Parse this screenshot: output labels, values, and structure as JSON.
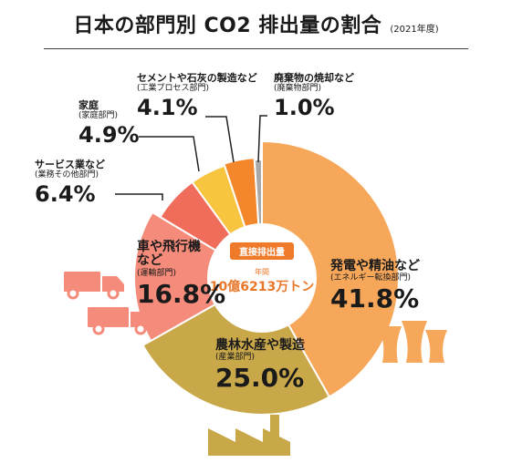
{
  "title": {
    "main": "日本の部門別 CO2 排出量の割合",
    "year": "(2021年度)"
  },
  "center": {
    "badge": "直接排出量",
    "label": "年間",
    "value": "10億6213万トン"
  },
  "colors": {
    "energy": "#f7a75a",
    "industry": "#c9a84a",
    "transport": "#f58b7a",
    "business": "#f06d5c",
    "household": "#f8c540",
    "industrial_process": "#f4872b",
    "waste": "#a9a9a9",
    "accent": "#ee7a2a"
  },
  "chart_data": {
    "type": "pie",
    "title": "日本の部門別 CO2 排出量の割合",
    "subtitle": "(2021年度)",
    "slices": [
      {
        "name": "発電や精油など",
        "sub": "(エネルギー転換部門)",
        "value": 41.8,
        "label": "41.8%"
      },
      {
        "name": "農林水産や製造",
        "sub": "(産業部門)",
        "value": 25.0,
        "label": "25.0%"
      },
      {
        "name": "車や飛行機など",
        "sub": "(運輸部門)",
        "value": 16.8,
        "label": "16.8%"
      },
      {
        "name": "サービス業など",
        "sub": "(業務その他部門)",
        "value": 6.4,
        "label": "6.4%"
      },
      {
        "name": "家庭",
        "sub": "(家庭部門)",
        "value": 4.9,
        "label": "4.9%"
      },
      {
        "name": "セメントや石灰の製造など",
        "sub": "(工業プロセス部門)",
        "value": 4.1,
        "label": "4.1%"
      },
      {
        "name": "廃棄物の焼却など",
        "sub": "(廃棄物部門)",
        "value": 1.0,
        "label": "1.0%"
      }
    ]
  }
}
